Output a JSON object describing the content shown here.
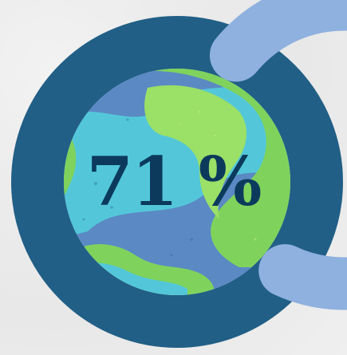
{
  "progress": {
    "value_percent": 71,
    "label": "71 %"
  },
  "colors": {
    "background": "#ececec",
    "track": "#215f86",
    "fill": "#8fb1df",
    "ocean": "#5b89c4",
    "ocean_light": "#53c7d9",
    "land": "#7fd35c",
    "text": "#0b3a5c"
  },
  "icons": {
    "globe": "earth-globe-icon"
  }
}
